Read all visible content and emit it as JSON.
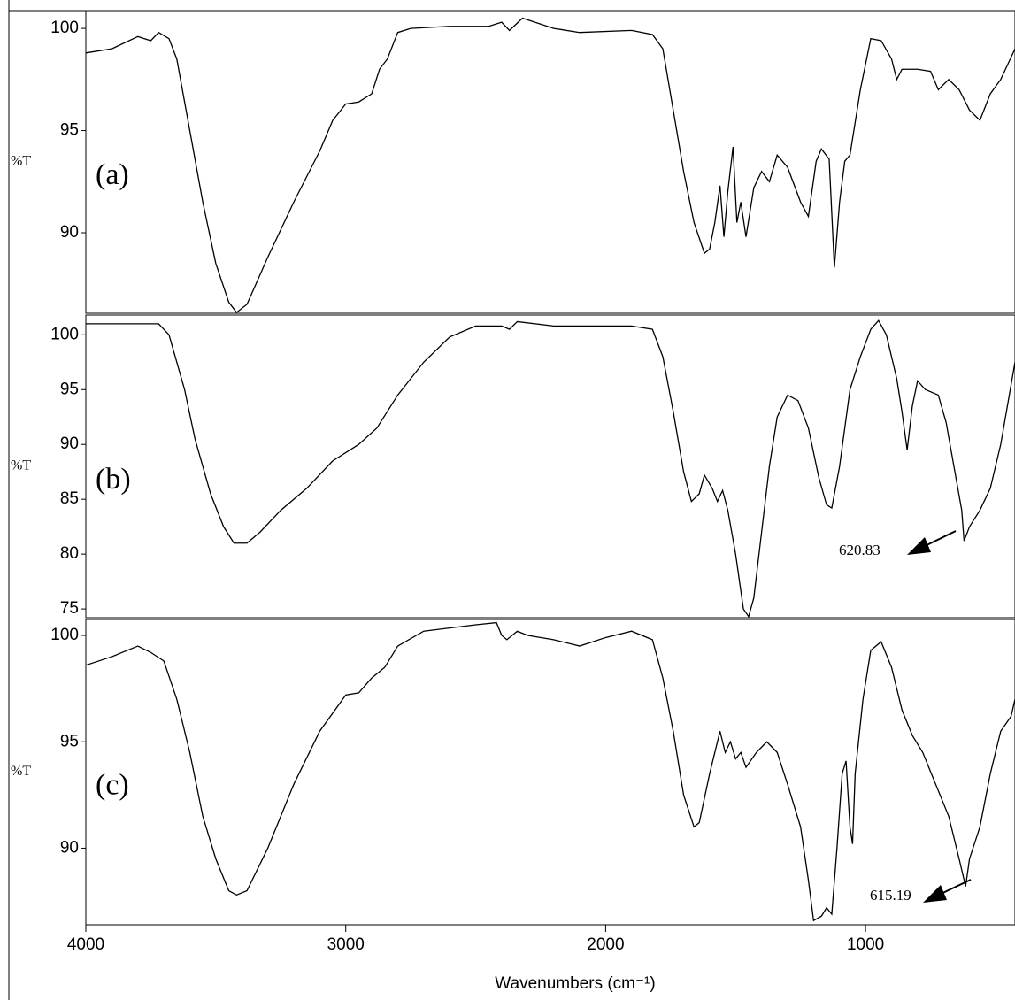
{
  "chart_data": [
    {
      "type": "line",
      "label": "(a)",
      "ylabel": "%T",
      "color": "#000000",
      "xlim": [
        4000,
        425
      ],
      "ylim": [
        86.06,
        100.87
      ],
      "yticks": [
        90,
        95,
        100
      ],
      "x": [
        4000,
        3900,
        3800,
        3750,
        3720,
        3680,
        3650,
        3600,
        3550,
        3500,
        3450,
        3420,
        3380,
        3300,
        3200,
        3100,
        3050,
        3000,
        2950,
        2900,
        2870,
        2840,
        2800,
        2750,
        2600,
        2450,
        2400,
        2370,
        2320,
        2200,
        2100,
        1900,
        1820,
        1780,
        1740,
        1700,
        1660,
        1620,
        1600,
        1580,
        1560,
        1545,
        1530,
        1510,
        1495,
        1480,
        1460,
        1430,
        1400,
        1370,
        1340,
        1300,
        1250,
        1220,
        1190,
        1170,
        1140,
        1120,
        1100,
        1080,
        1060,
        1020,
        980,
        940,
        900,
        880,
        860,
        800,
        750,
        720,
        680,
        640,
        600,
        560,
        520,
        480,
        425
      ],
      "values": [
        98.8,
        99.0,
        99.6,
        99.4,
        99.8,
        99.5,
        98.5,
        95,
        91.5,
        88.5,
        86.6,
        86.1,
        86.5,
        88.8,
        91.5,
        94,
        95.5,
        96.3,
        96.4,
        96.8,
        98.0,
        98.5,
        99.8,
        100.0,
        100.1,
        100.1,
        100.3,
        99.9,
        100.5,
        100.0,
        99.8,
        99.9,
        99.7,
        99,
        96,
        93,
        90.5,
        89,
        89.2,
        90.5,
        92.3,
        89.8,
        92,
        94.2,
        90.5,
        91.5,
        89.8,
        92.2,
        93.0,
        92.5,
        93.8,
        93.2,
        91.5,
        90.8,
        93.5,
        94.1,
        93.6,
        88.3,
        91.5,
        93.5,
        93.8,
        97,
        99.5,
        99.4,
        98.5,
        97.5,
        98.0,
        98.0,
        97.9,
        97.0,
        97.5,
        97.0,
        96.0,
        95.5,
        96.8,
        97.5,
        99.0
      ]
    },
    {
      "type": "line",
      "label": "(b)",
      "ylabel": "%T",
      "color": "#000000",
      "annotation": "620.83",
      "xlim": [
        4000,
        425
      ],
      "ylim": [
        74.2,
        101.8
      ],
      "yticks": [
        75,
        80,
        85,
        90,
        95,
        100
      ],
      "x": [
        4000,
        3800,
        3720,
        3680,
        3620,
        3580,
        3520,
        3470,
        3430,
        3380,
        3330,
        3250,
        3150,
        3050,
        2950,
        2880,
        2800,
        2700,
        2600,
        2500,
        2400,
        2370,
        2340,
        2200,
        2000,
        1900,
        1820,
        1780,
        1740,
        1700,
        1670,
        1640,
        1620,
        1590,
        1570,
        1550,
        1530,
        1500,
        1470,
        1450,
        1430,
        1400,
        1370,
        1340,
        1300,
        1260,
        1220,
        1180,
        1150,
        1130,
        1100,
        1060,
        1020,
        980,
        950,
        920,
        880,
        860,
        840,
        820,
        800,
        770,
        720,
        690,
        660,
        630,
        621,
        600,
        560,
        520,
        480,
        425
      ],
      "values": [
        101.0,
        101.0,
        101.0,
        100,
        95,
        90.5,
        85.5,
        82.5,
        81.0,
        81.0,
        82.0,
        84.0,
        86.0,
        88.5,
        90.0,
        91.5,
        94.5,
        97.5,
        99.8,
        100.8,
        100.8,
        100.5,
        101.2,
        100.8,
        100.8,
        100.8,
        100.5,
        98,
        93,
        87.5,
        84.8,
        85.5,
        87.2,
        86,
        84.8,
        85.8,
        84.0,
        80,
        75.0,
        74.3,
        76,
        82,
        88,
        92.5,
        94.5,
        94,
        91.5,
        87,
        84.5,
        84.2,
        88,
        95,
        98,
        100.5,
        101.3,
        100,
        96,
        93,
        89.5,
        93.5,
        95.8,
        95.0,
        94.5,
        92,
        88,
        84,
        81.2,
        82.5,
        84,
        86,
        90,
        97.5
      ]
    },
    {
      "type": "line",
      "label": "(c)",
      "ylabel": "%T",
      "color": "#000000",
      "annotation": "615.19",
      "xlabel": "Wavenumbers  (cm⁻¹)",
      "xlim": [
        4000,
        425
      ],
      "xticks": [
        4000,
        3000,
        2000,
        1000
      ],
      "ylim": [
        86.4,
        100.75
      ],
      "yticks": [
        90,
        95,
        100
      ],
      "x": [
        4000,
        3900,
        3800,
        3750,
        3700,
        3650,
        3600,
        3550,
        3500,
        3450,
        3420,
        3380,
        3300,
        3200,
        3100,
        3000,
        2950,
        2900,
        2850,
        2800,
        2700,
        2500,
        2420,
        2400,
        2380,
        2340,
        2300,
        2200,
        2100,
        2000,
        1900,
        1820,
        1780,
        1740,
        1700,
        1660,
        1640,
        1600,
        1560,
        1540,
        1520,
        1500,
        1480,
        1460,
        1420,
        1380,
        1340,
        1300,
        1250,
        1220,
        1200,
        1170,
        1150,
        1130,
        1110,
        1090,
        1075,
        1060,
        1050,
        1040,
        1010,
        980,
        940,
        900,
        860,
        820,
        780,
        730,
        680,
        640,
        615,
        600,
        560,
        520,
        480,
        440,
        425
      ],
      "values": [
        98.6,
        99.0,
        99.5,
        99.2,
        98.8,
        97,
        94.5,
        91.5,
        89.5,
        88.0,
        87.8,
        88.0,
        90.0,
        93.0,
        95.5,
        97.2,
        97.3,
        98.0,
        98.5,
        99.5,
        100.2,
        100.5,
        100.6,
        100.0,
        99.8,
        100.2,
        100.0,
        99.8,
        99.5,
        99.9,
        100.2,
        99.8,
        98,
        95.5,
        92.5,
        91.0,
        91.2,
        93.5,
        95.5,
        94.5,
        95.0,
        94.2,
        94.5,
        93.8,
        94.5,
        95.0,
        94.5,
        93,
        91,
        88.5,
        86.6,
        86.8,
        87.2,
        86.9,
        90,
        93.5,
        94.1,
        91,
        90.2,
        93.5,
        97,
        99.3,
        99.7,
        98.5,
        96.5,
        95.3,
        94.5,
        93,
        91.5,
        89.5,
        88.2,
        89.5,
        91,
        93.5,
        95.5,
        96.2,
        97
      ]
    }
  ]
}
